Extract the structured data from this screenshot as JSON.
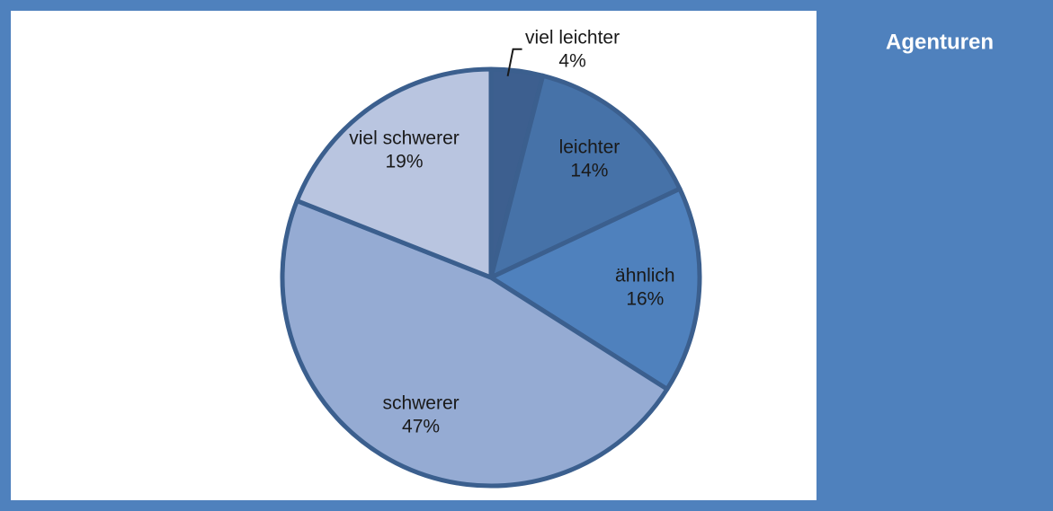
{
  "chart_data": {
    "type": "pie",
    "title": "Agenturen",
    "categories": [
      "viel leichter",
      "leichter",
      "ähnlich",
      "schwerer",
      "viel schwerer"
    ],
    "values": [
      4,
      14,
      16,
      47,
      19
    ],
    "value_labels": [
      "4%",
      "14%",
      "16%",
      "47%",
      "19%"
    ],
    "colors": [
      "#3d5f8f",
      "#4672a8",
      "#4f81bd",
      "#95abd3",
      "#b9c5e0"
    ]
  }
}
